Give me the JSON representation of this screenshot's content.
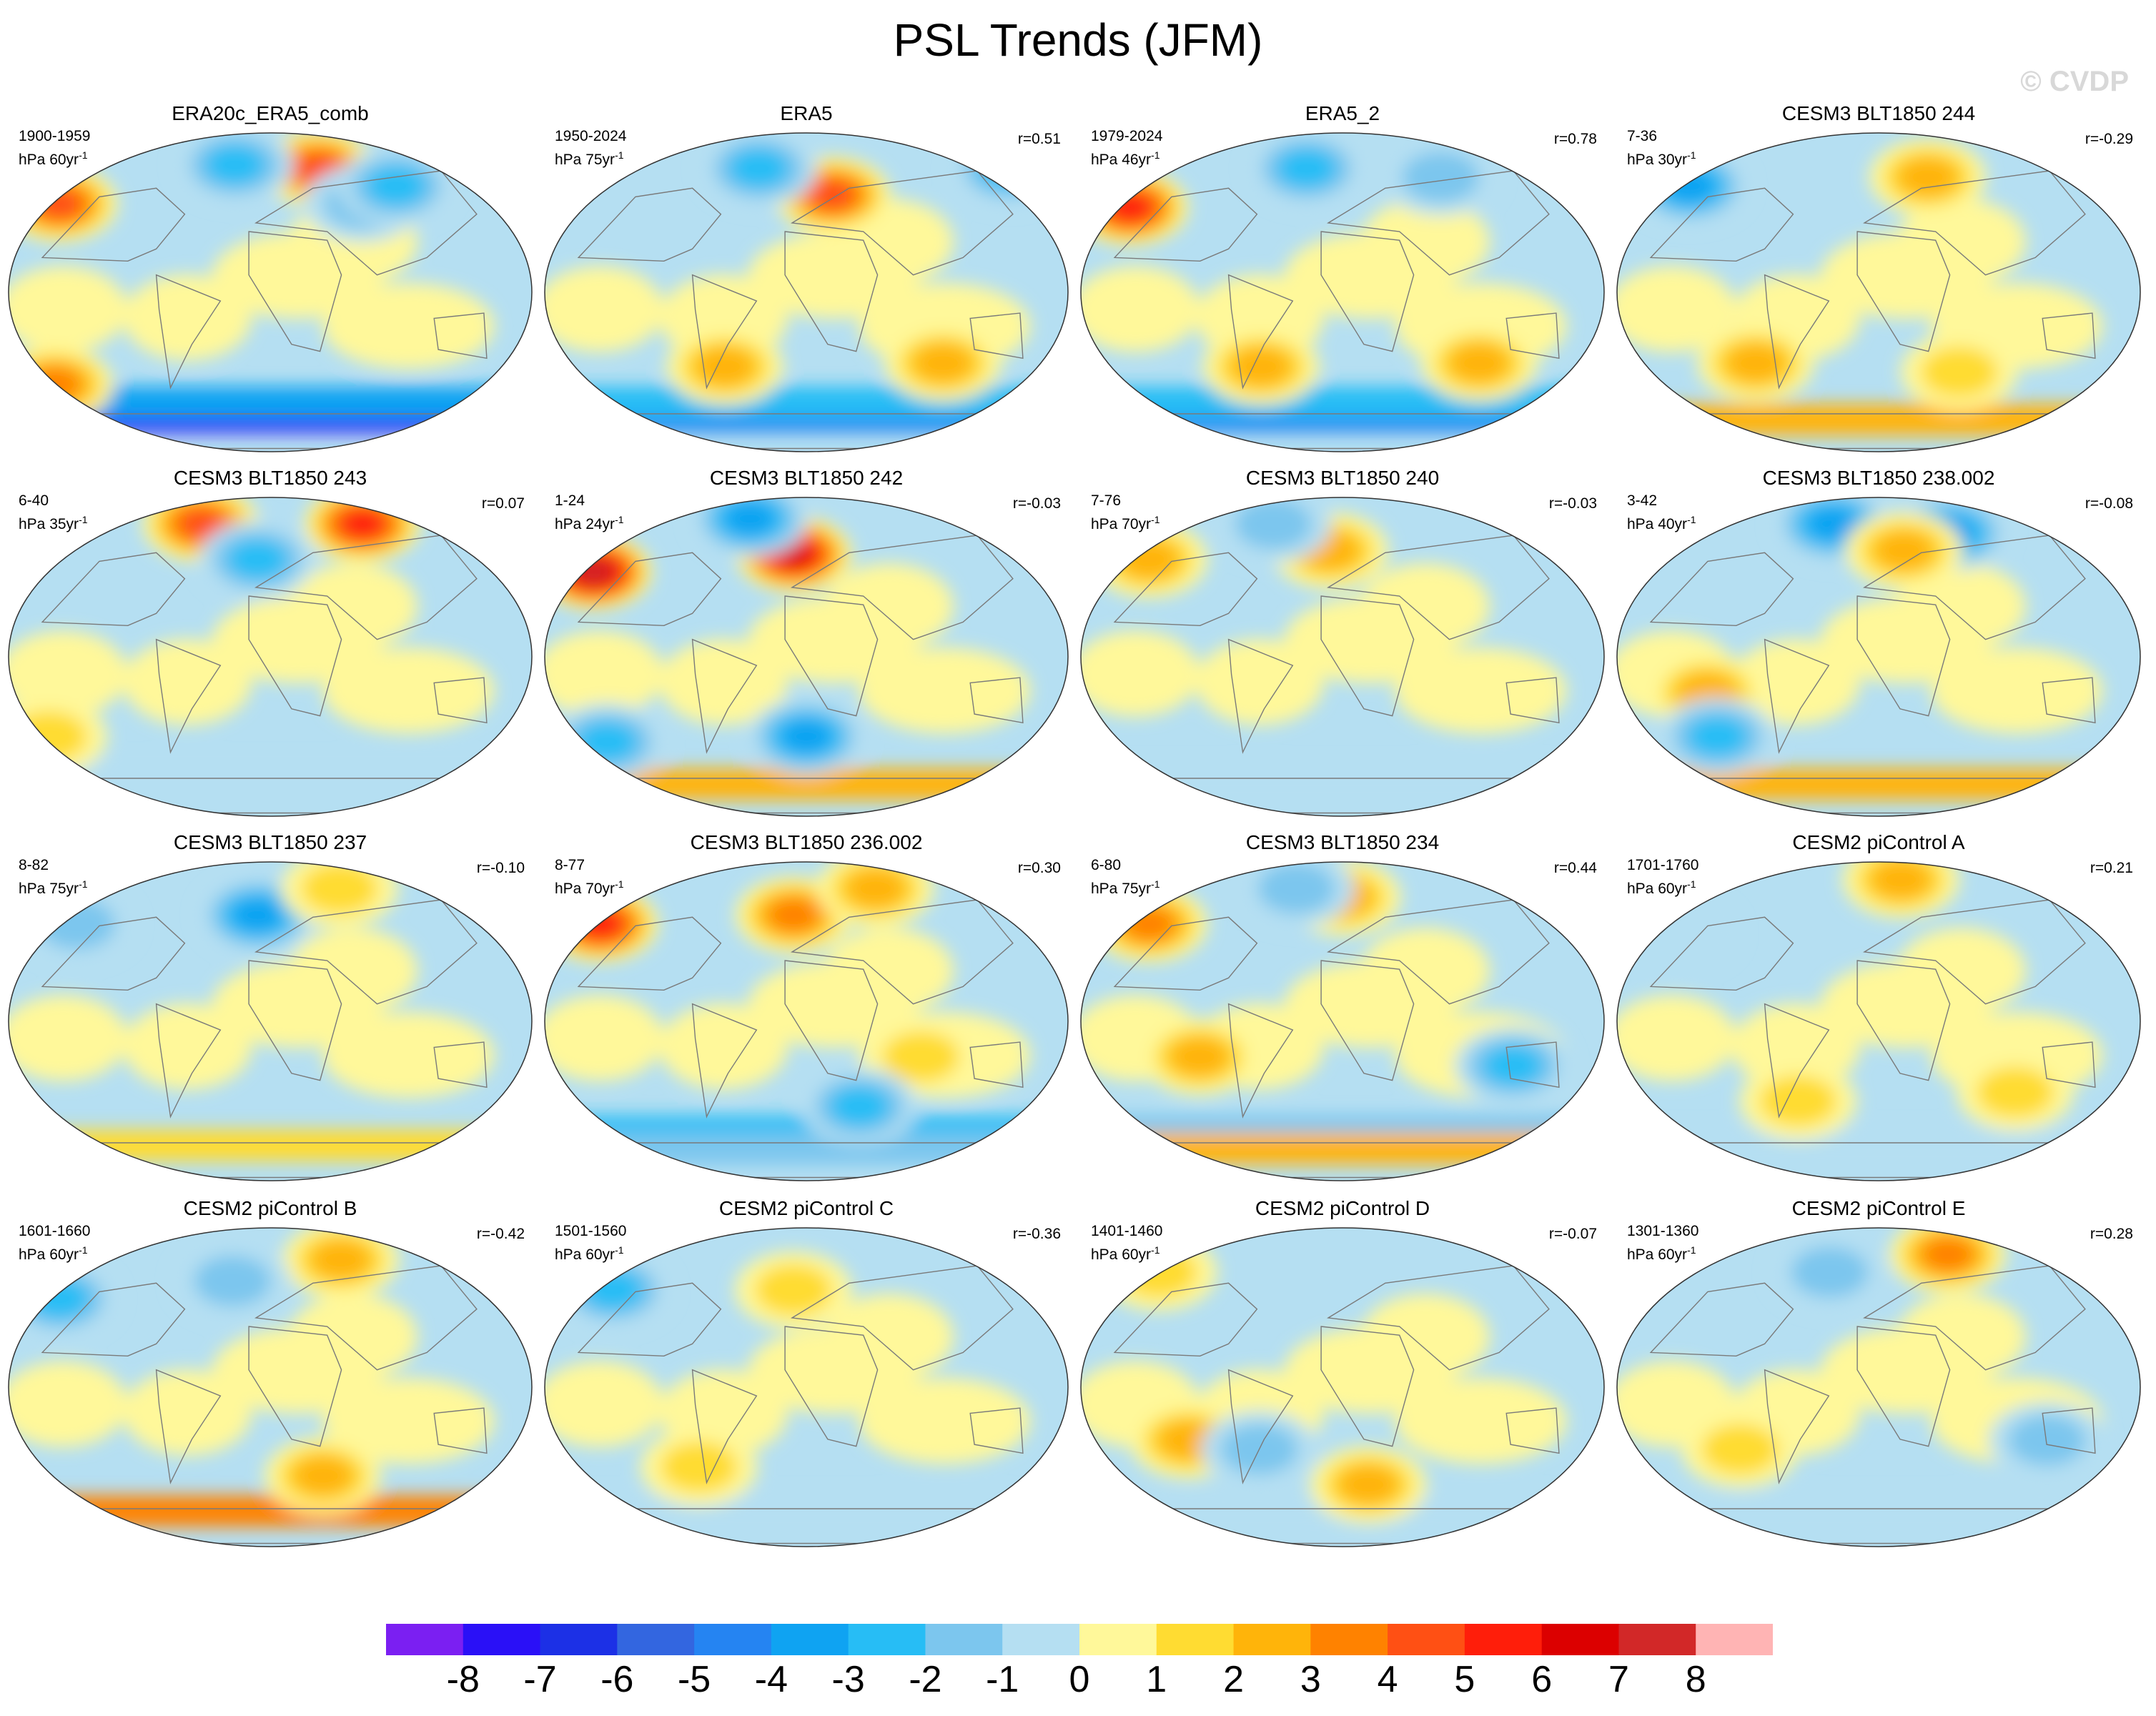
{
  "title": "PSL Trends (JFM)",
  "watermark": "© CVDP",
  "units_base": "hPa",
  "units_sup": "-1",
  "colorbar": {
    "colors": [
      "#7b1ff2",
      "#2a10f7",
      "#1c30e6",
      "#3366e0",
      "#2584f2",
      "#0fa3f2",
      "#27bdf5",
      "#7cc6ee",
      "#b5dff2",
      "#fff89a",
      "#ffdc32",
      "#ffb40a",
      "#ff8200",
      "#ff5014",
      "#ff1e0a",
      "#dc0000",
      "#d22828",
      "#ffb4b4"
    ],
    "labels": [
      "-8",
      "-7",
      "-6",
      "-5",
      "-4",
      "-3",
      "-2",
      "-1",
      "0",
      "1",
      "2",
      "3",
      "4",
      "5",
      "6",
      "7",
      "8"
    ]
  },
  "panels": [
    {
      "title": "ERA20c_ERA5_comb",
      "range": "1900-1959",
      "units": "hPa 60yr",
      "corr": "",
      "blobs": [
        {
          "lon": -160,
          "lat": 50,
          "v": 5
        },
        {
          "lon": -165,
          "lat": -52,
          "v": 4
        },
        {
          "lon": 40,
          "lat": 70,
          "v": 5
        },
        {
          "lon": -30,
          "lat": 72,
          "v": -3
        },
        {
          "lon": 70,
          "lat": 50,
          "v": -2
        },
        {
          "lon": 100,
          "lat": 60,
          "v": -3
        }
      ],
      "band": [
        {
          "lat": -70,
          "v": -8
        },
        {
          "lat": -62,
          "v": -4
        }
      ]
    },
    {
      "title": "ERA5",
      "range": "1950-2024",
      "units": "hPa 75yr",
      "corr": "r=0.51",
      "blobs": [
        {
          "lon": 20,
          "lat": 55,
          "v": 5
        },
        {
          "lon": -40,
          "lat": 70,
          "v": -3
        },
        {
          "lon": 170,
          "lat": 70,
          "v": -3
        },
        {
          "lon": -60,
          "lat": -42,
          "v": 3
        },
        {
          "lon": 100,
          "lat": -40,
          "v": 3
        }
      ],
      "band": [
        {
          "lat": -70,
          "v": -5
        },
        {
          "lat": -62,
          "v": -3
        }
      ]
    },
    {
      "title": "ERA5_2",
      "range": "1979-2024",
      "units": "hPa 46yr",
      "corr": "r=0.78",
      "blobs": [
        {
          "lon": -160,
          "lat": 48,
          "v": 6
        },
        {
          "lon": -30,
          "lat": 70,
          "v": -3
        },
        {
          "lon": 80,
          "lat": 65,
          "v": -2
        },
        {
          "lon": -60,
          "lat": -42,
          "v": 3
        },
        {
          "lon": 100,
          "lat": -40,
          "v": 3
        }
      ],
      "band": [
        {
          "lat": -70,
          "v": -5
        },
        {
          "lat": -62,
          "v": -3
        }
      ]
    },
    {
      "title": "CESM3 BLT1850 244",
      "range": "7-36",
      "units": "hPa 30yr",
      "corr": "r=-0.29",
      "blobs": [
        {
          "lon": -150,
          "lat": 60,
          "v": -4
        },
        {
          "lon": 40,
          "lat": 65,
          "v": 3
        },
        {
          "lon": -90,
          "lat": -40,
          "v": 3
        },
        {
          "lon": 60,
          "lat": -45,
          "v": 2
        }
      ],
      "band": [
        {
          "lat": -72,
          "v": 2
        }
      ]
    },
    {
      "title": "CESM3 BLT1850 243",
      "range": "6-40",
      "units": "hPa 35yr",
      "corr": "r=0.07",
      "blobs": [
        {
          "lon": -60,
          "lat": 75,
          "v": 5
        },
        {
          "lon": 80,
          "lat": 75,
          "v": 6
        },
        {
          "lon": -10,
          "lat": 55,
          "v": -3
        },
        {
          "lon": -165,
          "lat": -45,
          "v": 2
        }
      ],
      "band": [
        {
          "lat": -68,
          "v": -1
        }
      ]
    },
    {
      "title": "CESM3 BLT1850 242",
      "range": "1-24",
      "units": "hPa 24yr",
      "corr": "r=-0.03",
      "blobs": [
        {
          "lon": -160,
          "lat": 48,
          "v": 8
        },
        {
          "lon": -10,
          "lat": 58,
          "v": 7
        },
        {
          "lon": -50,
          "lat": 78,
          "v": -4
        },
        {
          "lon": 0,
          "lat": -45,
          "v": -4
        },
        {
          "lon": -150,
          "lat": -48,
          "v": -3
        }
      ],
      "band": [
        {
          "lat": -72,
          "v": 2
        }
      ]
    },
    {
      "title": "CESM3 BLT1850 240",
      "range": "7-76",
      "units": "hPa 70yr",
      "corr": "r=-0.03",
      "blobs": [
        {
          "lon": -150,
          "lat": 55,
          "v": 3
        },
        {
          "lon": -10,
          "lat": 60,
          "v": 3
        },
        {
          "lon": -60,
          "lat": 75,
          "v": -2
        }
      ],
      "band": [
        {
          "lat": -70,
          "v": -1
        }
      ]
    },
    {
      "title": "CESM3 BLT1850 238.002",
      "range": "3-42",
      "units": "hPa 40yr",
      "corr": "r=-0.08",
      "blobs": [
        {
          "lon": -40,
          "lat": 75,
          "v": -4
        },
        {
          "lon": 60,
          "lat": 70,
          "v": -4
        },
        {
          "lon": 20,
          "lat": 60,
          "v": 3
        },
        {
          "lon": -120,
          "lat": -20,
          "v": 3
        },
        {
          "lon": -120,
          "lat": -45,
          "v": -3
        }
      ],
      "band": [
        {
          "lat": -72,
          "v": 2
        }
      ]
    },
    {
      "title": "CESM3 BLT1850 237",
      "range": "8-82",
      "units": "hPa 75yr",
      "corr": "r=-0.10",
      "blobs": [
        {
          "lon": -10,
          "lat": 60,
          "v": -4
        },
        {
          "lon": -150,
          "lat": 55,
          "v": -2
        },
        {
          "lon": 60,
          "lat": 75,
          "v": 2
        }
      ],
      "band": [
        {
          "lat": -70,
          "v": 1
        }
      ]
    },
    {
      "title": "CESM3 BLT1850 236.002",
      "range": "8-77",
      "units": "hPa 70yr",
      "corr": "r=0.30",
      "blobs": [
        {
          "lon": -160,
          "lat": 55,
          "v": 6
        },
        {
          "lon": -10,
          "lat": 60,
          "v": 4
        },
        {
          "lon": 60,
          "lat": 75,
          "v": 3
        },
        {
          "lon": 80,
          "lat": -20,
          "v": 2
        },
        {
          "lon": 40,
          "lat": -48,
          "v": -3
        }
      ],
      "band": [
        {
          "lat": -62,
          "v": -3
        },
        {
          "lat": -72,
          "v": -2
        }
      ]
    },
    {
      "title": "CESM3 BLT1850 234",
      "range": "6-80",
      "units": "hPa 75yr",
      "corr": "r=0.44",
      "blobs": [
        {
          "lon": -150,
          "lat": 55,
          "v": 4
        },
        {
          "lon": 0,
          "lat": 70,
          "v": 3
        },
        {
          "lon": -40,
          "lat": 75,
          "v": -2
        },
        {
          "lon": -100,
          "lat": -20,
          "v": 3
        },
        {
          "lon": 120,
          "lat": -25,
          "v": -3
        }
      ],
      "band": [
        {
          "lat": -62,
          "v": -2
        },
        {
          "lat": -72,
          "v": 2
        }
      ]
    },
    {
      "title": "CESM2 piControl A",
      "range": "1701-1760",
      "units": "hPa 60yr",
      "corr": "r=0.21",
      "blobs": [
        {
          "lon": 20,
          "lat": 80,
          "v": 3
        },
        {
          "lon": -150,
          "lat": 50,
          "v": -1
        },
        {
          "lon": -60,
          "lat": -45,
          "v": 2
        },
        {
          "lon": 100,
          "lat": -40,
          "v": 2
        }
      ],
      "band": [
        {
          "lat": -70,
          "v": -1
        }
      ]
    },
    {
      "title": "CESM2 piControl B",
      "range": "1601-1660",
      "units": "hPa 60yr",
      "corr": "r=-0.42",
      "blobs": [
        {
          "lon": -160,
          "lat": 50,
          "v": -3
        },
        {
          "lon": 60,
          "lat": 72,
          "v": 3
        },
        {
          "lon": -30,
          "lat": 60,
          "v": -2
        },
        {
          "lon": 40,
          "lat": -50,
          "v": 3
        }
      ],
      "band": [
        {
          "lat": -70,
          "v": 3
        }
      ]
    },
    {
      "title": "CESM2 piControl C",
      "range": "1501-1560",
      "units": "hPa 60yr",
      "corr": "r=-0.36",
      "blobs": [
        {
          "lon": -150,
          "lat": 55,
          "v": -3
        },
        {
          "lon": -10,
          "lat": 55,
          "v": 2
        },
        {
          "lon": -80,
          "lat": -45,
          "v": 2
        }
      ],
      "band": [
        {
          "lat": -70,
          "v": -1
        }
      ]
    },
    {
      "title": "CESM2 piControl D",
      "range": "1401-1460",
      "units": "hPa 60yr",
      "corr": "r=-0.07",
      "blobs": [
        {
          "lon": -110,
          "lat": -30,
          "v": 3
        },
        {
          "lon": 20,
          "lat": -55,
          "v": 3
        },
        {
          "lon": -60,
          "lat": -35,
          "v": -2
        },
        {
          "lon": -150,
          "lat": 65,
          "v": 2
        }
      ],
      "band": [
        {
          "lat": -70,
          "v": -1
        }
      ]
    },
    {
      "title": "CESM2 piControl E",
      "range": "1301-1360",
      "units": "hPa 60yr",
      "corr": "r=0.28",
      "blobs": [
        {
          "lon": 60,
          "lat": 75,
          "v": 4
        },
        {
          "lon": -40,
          "lat": 65,
          "v": -2
        },
        {
          "lon": 120,
          "lat": -30,
          "v": -2
        },
        {
          "lon": -100,
          "lat": -35,
          "v": 2
        }
      ],
      "band": [
        {
          "lat": -70,
          "v": -1
        }
      ]
    }
  ]
}
